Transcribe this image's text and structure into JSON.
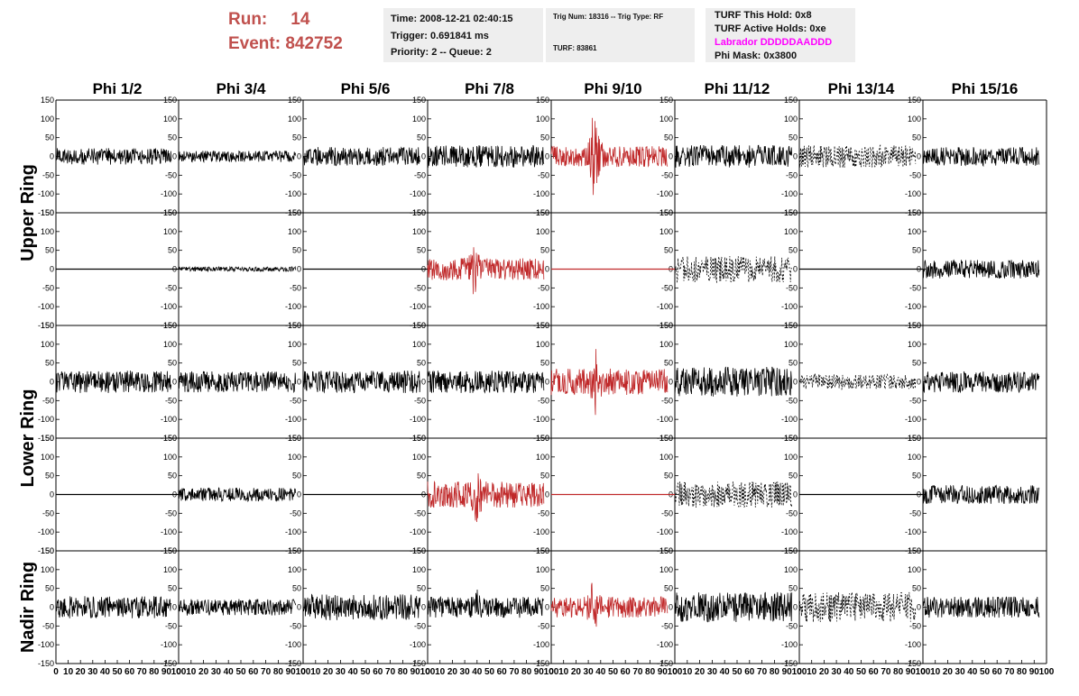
{
  "header": {
    "run_label": "Run:",
    "run_value": "14",
    "event_label": "Event:",
    "event_value": "842752"
  },
  "info_panel_1": {
    "time": "Time: 2008-12-21 02:40:15",
    "trigger": "Trigger: 0.691841 ms",
    "priority": "Priority: 2 -- Queue: 2"
  },
  "info_panel_2": {
    "trig": "Trig Num: 18316 -- Trig Type: RF",
    "turf": "TURF: 83861"
  },
  "info_panel_3": {
    "this_hold": "TURF This Hold: 0x8",
    "active_holds": "TURF Active Holds: 0xe",
    "labrador": "Labrador DDDDDAADDD",
    "phi_mask": "Phi Mask: 0x3800"
  },
  "colors": {
    "header_red": "#c0504d",
    "triggered_trace": "#c0292a",
    "normal_trace": "#000000",
    "labrador": "#ff00ff"
  },
  "chart_data": {
    "type": "line",
    "columns": [
      "Phi 1/2",
      "Phi 3/4",
      "Phi 5/6",
      "Phi 7/8",
      "Phi 9/10",
      "Phi 11/12",
      "Phi 13/14",
      "Phi 15/16"
    ],
    "row_groups": [
      {
        "label": "Upper Ring",
        "rows": [
          0,
          1
        ]
      },
      {
        "label": "Lower Ring",
        "rows": [
          2,
          3
        ]
      },
      {
        "label": "Nadir Ring",
        "rows": [
          4
        ]
      }
    ],
    "xlim": [
      0,
      100
    ],
    "ylim": [
      -150,
      150
    ],
    "x_ticks": [
      "0",
      "10",
      "20",
      "30",
      "40",
      "50",
      "60",
      "70",
      "80",
      "90",
      "100"
    ],
    "y_ticks": [
      "-150",
      "-100",
      "-50",
      "0",
      "50",
      "100",
      "150"
    ],
    "traces": [
      [
        {
          "style": "noise",
          "amp": 22,
          "end": 94
        },
        {
          "style": "noise",
          "amp": 15,
          "end": 94
        },
        {
          "style": "noise",
          "amp": 25,
          "end": 94
        },
        {
          "style": "noise",
          "amp": 30,
          "end": 94
        },
        {
          "style": "pulse",
          "amp": 28,
          "pulse_amp": 150,
          "pulse_at": 33,
          "end": 94,
          "triggered": true
        },
        {
          "style": "noise",
          "amp": 30,
          "end": 94
        },
        {
          "style": "dashed",
          "amp": 30,
          "end": 94
        },
        {
          "style": "noise",
          "amp": 25,
          "end": 94
        }
      ],
      [
        {
          "style": "flat",
          "end": 100
        },
        {
          "style": "noise",
          "amp": 6,
          "end": 94
        },
        {
          "style": "flat",
          "end": 100
        },
        {
          "style": "pulse",
          "amp": 30,
          "pulse_amp": 100,
          "pulse_at": 36,
          "end": 94,
          "triggered": true
        },
        {
          "style": "flat",
          "end": 100,
          "triggered": true
        },
        {
          "style": "dashed",
          "amp": 35,
          "end": 94
        },
        {
          "style": "flat",
          "end": 100
        },
        {
          "style": "noise",
          "amp": 25,
          "end": 94
        }
      ],
      [
        {
          "style": "noise",
          "amp": 30,
          "end": 94
        },
        {
          "style": "noise",
          "amp": 28,
          "end": 94
        },
        {
          "style": "noise",
          "amp": 30,
          "end": 94
        },
        {
          "style": "noise",
          "amp": 30,
          "end": 94
        },
        {
          "style": "pulse",
          "amp": 35,
          "pulse_amp": 110,
          "pulse_at": 35,
          "end": 94,
          "triggered": true
        },
        {
          "style": "noise",
          "amp": 40,
          "end": 94
        },
        {
          "style": "dashed",
          "amp": 20,
          "end": 94
        },
        {
          "style": "noise",
          "amp": 28,
          "end": 94
        }
      ],
      [
        {
          "style": "flat",
          "end": 100
        },
        {
          "style": "noise",
          "amp": 18,
          "end": 94
        },
        {
          "style": "flat",
          "end": 100
        },
        {
          "style": "pulse",
          "amp": 35,
          "pulse_amp": 115,
          "pulse_at": 38,
          "end": 94,
          "triggered": true
        },
        {
          "style": "flat",
          "end": 100,
          "triggered": true
        },
        {
          "style": "dashed",
          "amp": 35,
          "end": 94
        },
        {
          "style": "flat",
          "end": 100
        },
        {
          "style": "noise",
          "amp": 25,
          "end": 94
        }
      ],
      [
        {
          "style": "noise",
          "amp": 30,
          "end": 94
        },
        {
          "style": "noise",
          "amp": 22,
          "end": 94
        },
        {
          "style": "noise",
          "amp": 35,
          "end": 94
        },
        {
          "style": "pulse",
          "amp": 28,
          "pulse_amp": 70,
          "pulse_at": 38,
          "end": 94
        },
        {
          "style": "pulse",
          "amp": 28,
          "pulse_amp": 120,
          "pulse_at": 32,
          "end": 94,
          "triggered": true
        },
        {
          "style": "noise",
          "amp": 40,
          "end": 94
        },
        {
          "style": "dashed",
          "amp": 40,
          "end": 94
        },
        {
          "style": "noise",
          "amp": 28,
          "end": 94
        }
      ]
    ]
  }
}
